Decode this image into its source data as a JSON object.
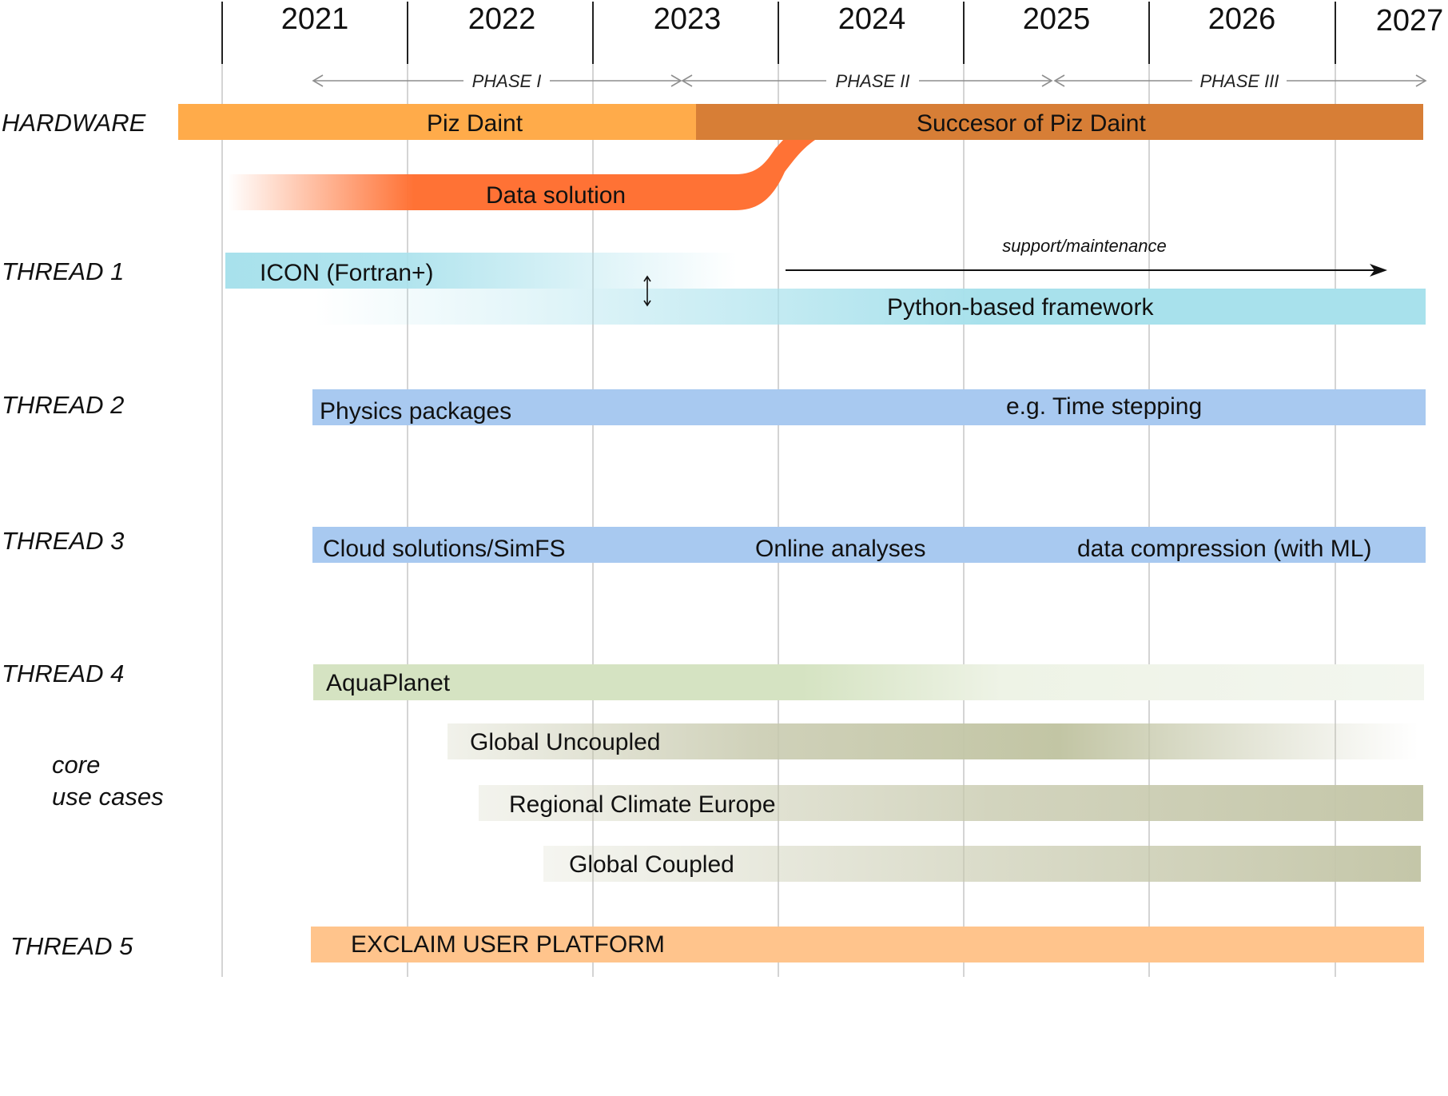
{
  "timeline": {
    "years": [
      "2021",
      "2022",
      "2023",
      "2024",
      "2025",
      "2026",
      "2027"
    ],
    "phases": [
      "PHASE I",
      "PHASE II",
      "PHASE III"
    ]
  },
  "rows": {
    "hardware": "HARDWARE",
    "thread1": "THREAD 1",
    "thread2": "THREAD 2",
    "thread3": "THREAD 3",
    "thread4": "THREAD 4",
    "core_use_cases": [
      "core",
      "use cases"
    ],
    "thread5": "THREAD 5"
  },
  "bars": {
    "piz_daint": "Piz Daint",
    "successor": "Succesor of Piz Daint",
    "data_solution": "Data solution",
    "icon": "ICON (Fortran+)",
    "python_framework": "Python-based framework",
    "physics_packages": "Physics packages",
    "time_stepping": "e.g. Time stepping",
    "cloud_solutions": "Cloud solutions/SimFS",
    "online_analyses": "Online analyses",
    "data_compression": "data compression (with ML)",
    "aquaplanet": "AquaPlanet",
    "global_uncoupled": "Global Uncoupled",
    "regional_climate": "Regional Climate Europe",
    "global_coupled": "Global Coupled",
    "user_platform": "EXCLAIM USER PLATFORM"
  },
  "annotations": {
    "support": "support/maintenance"
  },
  "colors": {
    "piz_daint": "#ffab4a",
    "successor": "#d77e36",
    "data_solution": "#ff7235",
    "thread1": "#a8e1ec",
    "threads23": "#a8c9f0",
    "aquaplanet": "#d5e3c2",
    "use_cases": "#c7c9ad",
    "thread5": "#ffc48c"
  }
}
